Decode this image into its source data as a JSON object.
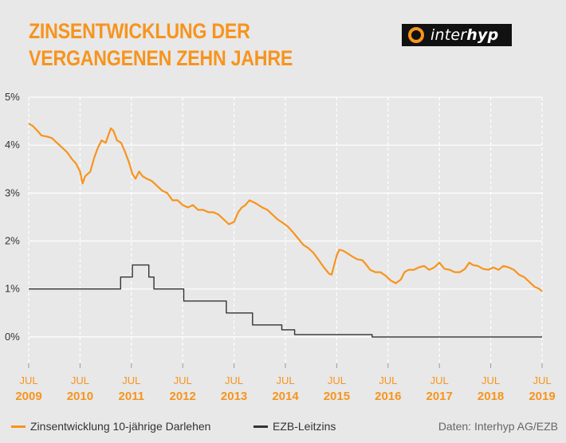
{
  "title": {
    "line1": "ZINSENTWICKLUNG DER",
    "line2": "VERGANGENEN ZEHN JAHRE"
  },
  "logo": {
    "prefix": "inter",
    "suffix": "hyp"
  },
  "source": "Daten: Interhyp AG/EZB",
  "colors": {
    "accent": "#f7941d",
    "dark": "#333333",
    "background": "#e8e8e8"
  },
  "chart_data": {
    "type": "line",
    "title": "ZINSENTWICKLUNG DER VERGANGENEN ZEHN JAHRE",
    "ylim": [
      -0.0065,
      0.05
    ],
    "yticks": [
      {
        "v": 0.05,
        "label": "5%"
      },
      {
        "v": 0.04,
        "label": "4%"
      },
      {
        "v": 0.03,
        "label": "3%"
      },
      {
        "v": 0.02,
        "label": "2%"
      },
      {
        "v": 0.01,
        "label": "1%"
      },
      {
        "v": 0.0,
        "label": "0%"
      }
    ],
    "xlim": [
      2009.5,
      2019.5
    ],
    "xticks": [
      {
        "v": 2009.5,
        "top": "JUL",
        "bottom": "2009"
      },
      {
        "v": 2010.5,
        "top": "JUL",
        "bottom": "2010"
      },
      {
        "v": 2011.5,
        "top": "JUL",
        "bottom": "2011"
      },
      {
        "v": 2012.5,
        "top": "JUL",
        "bottom": "2012"
      },
      {
        "v": 2013.5,
        "top": "JUL",
        "bottom": "2013"
      },
      {
        "v": 2014.5,
        "top": "JUL",
        "bottom": "2014"
      },
      {
        "v": 2015.5,
        "top": "JUL",
        "bottom": "2015"
      },
      {
        "v": 2016.5,
        "top": "JUL",
        "bottom": "2016"
      },
      {
        "v": 2017.5,
        "top": "JUL",
        "bottom": "2017"
      },
      {
        "v": 2018.5,
        "top": "JUL",
        "bottom": "2018"
      },
      {
        "v": 2019.5,
        "top": "JUL",
        "bottom": "2019"
      }
    ],
    "grid": true,
    "legend_position": "bottom-left",
    "series": [
      {
        "name": "Zinsentwicklung 10-jährige Darlehen",
        "color": "#f7941d",
        "points": [
          [
            2009.5,
            0.0445
          ],
          [
            2009.58,
            0.044
          ],
          [
            2009.67,
            0.043
          ],
          [
            2009.75,
            0.042
          ],
          [
            2009.85,
            0.0418
          ],
          [
            2009.95,
            0.0415
          ],
          [
            2010.05,
            0.0405
          ],
          [
            2010.15,
            0.0395
          ],
          [
            2010.25,
            0.0385
          ],
          [
            2010.35,
            0.037
          ],
          [
            2010.42,
            0.0362
          ],
          [
            2010.5,
            0.0345
          ],
          [
            2010.55,
            0.032
          ],
          [
            2010.6,
            0.0335
          ],
          [
            2010.7,
            0.0345
          ],
          [
            2010.78,
            0.0375
          ],
          [
            2010.85,
            0.0395
          ],
          [
            2010.92,
            0.041
          ],
          [
            2011.0,
            0.0405
          ],
          [
            2011.05,
            0.042
          ],
          [
            2011.1,
            0.0435
          ],
          [
            2011.15,
            0.043
          ],
          [
            2011.22,
            0.041
          ],
          [
            2011.3,
            0.0405
          ],
          [
            2011.38,
            0.0385
          ],
          [
            2011.45,
            0.0365
          ],
          [
            2011.52,
            0.034
          ],
          [
            2011.58,
            0.033
          ],
          [
            2011.65,
            0.0345
          ],
          [
            2011.72,
            0.0335
          ],
          [
            2011.8,
            0.033
          ],
          [
            2011.9,
            0.0325
          ],
          [
            2012.0,
            0.0315
          ],
          [
            2012.1,
            0.0305
          ],
          [
            2012.2,
            0.03
          ],
          [
            2012.3,
            0.0285
          ],
          [
            2012.4,
            0.0285
          ],
          [
            2012.5,
            0.0275
          ],
          [
            2012.6,
            0.027
          ],
          [
            2012.7,
            0.0275
          ],
          [
            2012.8,
            0.0265
          ],
          [
            2012.9,
            0.0265
          ],
          [
            2013.0,
            0.026
          ],
          [
            2013.1,
            0.026
          ],
          [
            2013.2,
            0.0255
          ],
          [
            2013.3,
            0.0245
          ],
          [
            2013.4,
            0.0235
          ],
          [
            2013.5,
            0.024
          ],
          [
            2013.58,
            0.026
          ],
          [
            2013.65,
            0.027
          ],
          [
            2013.72,
            0.0275
          ],
          [
            2013.8,
            0.0285
          ],
          [
            2013.9,
            0.028
          ],
          [
            2013.98,
            0.0275
          ],
          [
            2014.05,
            0.027
          ],
          [
            2014.15,
            0.0265
          ],
          [
            2014.25,
            0.0255
          ],
          [
            2014.35,
            0.0245
          ],
          [
            2014.45,
            0.0238
          ],
          [
            2014.55,
            0.023
          ],
          [
            2014.65,
            0.0218
          ],
          [
            2014.75,
            0.0205
          ],
          [
            2014.85,
            0.0192
          ],
          [
            2014.95,
            0.0185
          ],
          [
            2015.05,
            0.0175
          ],
          [
            2015.15,
            0.016
          ],
          [
            2015.25,
            0.0145
          ],
          [
            2015.35,
            0.0132
          ],
          [
            2015.4,
            0.013
          ],
          [
            2015.45,
            0.015
          ],
          [
            2015.5,
            0.017
          ],
          [
            2015.55,
            0.0182
          ],
          [
            2015.62,
            0.018
          ],
          [
            2015.7,
            0.0175
          ],
          [
            2015.8,
            0.0168
          ],
          [
            2015.9,
            0.0162
          ],
          [
            2016.0,
            0.016
          ],
          [
            2016.08,
            0.015
          ],
          [
            2016.15,
            0.014
          ],
          [
            2016.25,
            0.0135
          ],
          [
            2016.35,
            0.0135
          ],
          [
            2016.45,
            0.0128
          ],
          [
            2016.55,
            0.0118
          ],
          [
            2016.65,
            0.0112
          ],
          [
            2016.75,
            0.012
          ],
          [
            2016.82,
            0.0135
          ],
          [
            2016.9,
            0.014
          ],
          [
            2017.0,
            0.014
          ],
          [
            2017.1,
            0.0145
          ],
          [
            2017.2,
            0.0148
          ],
          [
            2017.3,
            0.014
          ],
          [
            2017.4,
            0.0145
          ],
          [
            2017.5,
            0.0155
          ],
          [
            2017.6,
            0.0142
          ],
          [
            2017.7,
            0.014
          ],
          [
            2017.8,
            0.0135
          ],
          [
            2017.9,
            0.0135
          ],
          [
            2018.0,
            0.0142
          ],
          [
            2018.08,
            0.0155
          ],
          [
            2018.15,
            0.015
          ],
          [
            2018.25,
            0.0148
          ],
          [
            2018.35,
            0.0142
          ],
          [
            2018.45,
            0.014
          ],
          [
            2018.55,
            0.0145
          ],
          [
            2018.65,
            0.014
          ],
          [
            2018.75,
            0.0148
          ],
          [
            2018.85,
            0.0145
          ],
          [
            2018.95,
            0.014
          ],
          [
            2019.05,
            0.013
          ],
          [
            2019.15,
            0.0125
          ],
          [
            2019.25,
            0.0115
          ],
          [
            2019.35,
            0.0105
          ],
          [
            2019.45,
            0.01
          ],
          [
            2019.5,
            0.0095
          ]
        ]
      },
      {
        "name": "EZB-Leitzins",
        "color": "#333333",
        "step": true,
        "points": [
          [
            2009.5,
            0.01
          ],
          [
            2011.29,
            0.0125
          ],
          [
            2011.52,
            0.015
          ],
          [
            2011.84,
            0.0125
          ],
          [
            2011.94,
            0.01
          ],
          [
            2012.52,
            0.0075
          ],
          [
            2013.35,
            0.005
          ],
          [
            2013.86,
            0.0025
          ],
          [
            2014.43,
            0.0015
          ],
          [
            2014.68,
            0.0005
          ],
          [
            2016.19,
            0.0
          ],
          [
            2019.5,
            0.0
          ]
        ]
      }
    ]
  }
}
